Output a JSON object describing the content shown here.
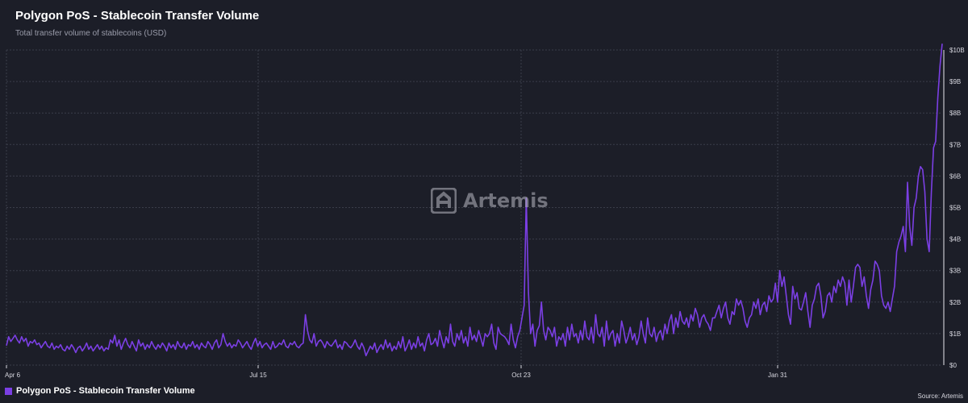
{
  "header": {
    "title": "Polygon PoS - Stablecoin Transfer Volume",
    "subtitle": "Total transfer volume of stablecoins (USD)"
  },
  "watermark": {
    "text": "Artemis",
    "icon": "artemis-logo-icon"
  },
  "legend": {
    "label": "Polygon PoS - Stablecoin Transfer Volume"
  },
  "footer": {
    "source": "Source: Artemis"
  },
  "colors": {
    "background": "#1c1e28",
    "series": "#7b3fe4",
    "grid": "#3a3d4a"
  },
  "chart_data": {
    "type": "line",
    "title": "Polygon PoS - Stablecoin Transfer Volume",
    "subtitle": "Total transfer volume of stablecoins (USD)",
    "xlabel": "",
    "ylabel": "",
    "x_ticks": [
      "Apr 6",
      "Jul 15",
      "Oct 23",
      "Jan 31"
    ],
    "y_ticks": [
      "$0",
      "$1B",
      "$2B",
      "$3B",
      "$4B",
      "$5B",
      "$6B",
      "$7B",
      "$8B",
      "$9B",
      "$10B"
    ],
    "ylim": [
      0,
      10000000000
    ],
    "y_axis_side": "right",
    "grid": true,
    "legend_position": "bottom-left",
    "x_start": "Apr 6",
    "series": [
      {
        "name": "Polygon PoS - Stablecoin Transfer Volume",
        "unit": "billion USD, daily",
        "values": [
          0.62,
          0.9,
          0.75,
          0.85,
          0.95,
          0.8,
          0.7,
          0.9,
          0.75,
          0.85,
          0.6,
          0.75,
          0.7,
          0.8,
          0.65,
          0.7,
          0.55,
          0.65,
          0.75,
          0.6,
          0.55,
          0.7,
          0.5,
          0.6,
          0.55,
          0.65,
          0.5,
          0.45,
          0.6,
          0.5,
          0.65,
          0.55,
          0.4,
          0.55,
          0.6,
          0.45,
          0.55,
          0.7,
          0.5,
          0.6,
          0.45,
          0.55,
          0.65,
          0.5,
          0.6,
          0.45,
          0.55,
          0.5,
          0.8,
          0.7,
          0.95,
          0.6,
          0.8,
          0.5,
          0.7,
          0.85,
          0.65,
          0.55,
          0.75,
          0.6,
          0.45,
          0.8,
          0.6,
          0.7,
          0.5,
          0.65,
          0.55,
          0.75,
          0.6,
          0.5,
          0.65,
          0.55,
          0.7,
          0.6,
          0.45,
          0.7,
          0.55,
          0.65,
          0.5,
          0.75,
          0.6,
          0.55,
          0.7,
          0.5,
          0.65,
          0.6,
          0.75,
          0.55,
          0.65,
          0.5,
          0.7,
          0.6,
          0.55,
          0.75,
          0.65,
          0.5,
          0.7,
          0.8,
          0.55,
          0.65,
          1.0,
          0.75,
          0.6,
          0.7,
          0.55,
          0.65,
          0.6,
          0.8,
          0.7,
          0.55,
          0.65,
          0.75,
          0.6,
          0.5,
          0.7,
          0.85,
          0.6,
          0.75,
          0.55,
          0.65,
          0.7,
          0.6,
          0.5,
          0.75,
          0.55,
          0.6,
          0.7,
          0.65,
          0.8,
          0.6,
          0.55,
          0.7,
          0.65,
          0.75,
          0.6,
          0.55,
          0.65,
          0.7,
          1.6,
          1.1,
          0.8,
          0.7,
          1.0,
          0.6,
          0.75,
          0.8,
          0.7,
          0.55,
          0.75,
          0.65,
          0.6,
          0.7,
          0.8,
          0.55,
          0.65,
          0.5,
          0.75,
          0.7,
          0.6,
          0.55,
          0.65,
          0.8,
          0.6,
          0.5,
          0.7,
          0.55,
          0.3,
          0.45,
          0.6,
          0.5,
          0.7,
          0.4,
          0.55,
          0.65,
          0.5,
          0.8,
          0.55,
          0.7,
          0.45,
          0.6,
          0.5,
          0.75,
          0.55,
          0.9,
          0.45,
          0.6,
          0.8,
          0.5,
          0.7,
          0.55,
          0.9,
          0.6,
          0.7,
          0.45,
          0.8,
          1.0,
          0.65,
          0.7,
          0.85,
          0.6,
          1.1,
          0.8,
          0.55,
          0.9,
          0.7,
          1.3,
          0.75,
          0.6,
          1.0,
          0.8,
          1.1,
          0.7,
          0.9,
          0.6,
          1.2,
          0.8,
          0.95,
          0.75,
          1.1,
          0.85,
          0.6,
          1.0,
          0.9,
          1.0,
          1.3,
          0.7,
          0.5,
          1.2,
          1.0,
          0.95,
          0.9,
          0.8,
          0.65,
          1.3,
          0.8,
          0.55,
          0.9,
          1.1,
          1.5,
          1.9,
          5.3,
          2.3,
          1.0,
          1.3,
          0.6,
          1.1,
          1.25,
          2.0,
          1.1,
          0.8,
          1.2,
          1.1,
          0.9,
          1.2,
          0.6,
          0.9,
          0.8,
          1.0,
          0.6,
          1.2,
          0.8,
          1.3,
          0.9,
          1.0,
          0.7,
          1.1,
          0.8,
          1.4,
          0.9,
          0.8,
          1.2,
          0.7,
          1.6,
          1.0,
          0.9,
          1.2,
          0.6,
          1.4,
          0.8,
          1.0,
          1.1,
          0.6,
          1.0,
          0.7,
          1.4,
          1.1,
          0.7,
          0.9,
          1.2,
          0.8,
          1.0,
          0.65,
          0.9,
          1.4,
          1.0,
          0.7,
          1.5,
          1.0,
          0.9,
          1.2,
          0.75,
          1.0,
          1.1,
          0.8,
          1.3,
          1.0,
          1.4,
          1.6,
          1.0,
          1.5,
          1.2,
          1.7,
          1.4,
          1.3,
          1.5,
          1.2,
          1.6,
          1.4,
          1.8,
          1.6,
          1.2,
          1.5,
          1.6,
          1.4,
          1.3,
          1.1,
          1.5,
          1.5,
          1.7,
          1.9,
          1.5,
          1.8,
          2.0,
          1.5,
          1.3,
          1.7,
          1.6,
          2.1,
          1.9,
          2.05,
          1.8,
          1.4,
          1.2,
          1.5,
          1.6,
          2.0,
          1.8,
          2.1,
          1.6,
          1.9,
          2.0,
          1.7,
          2.2,
          2.0,
          2.1,
          2.6,
          2.0,
          3.0,
          2.5,
          2.8,
          2.2,
          1.6,
          1.3,
          2.5,
          2.1,
          2.3,
          1.8,
          1.75,
          2.0,
          2.3,
          1.7,
          1.2,
          1.9,
          2.1,
          2.5,
          2.6,
          2.2,
          1.5,
          1.7,
          2.2,
          2.3,
          2.0,
          2.5,
          2.3,
          2.7,
          2.5,
          2.8,
          2.6,
          1.9,
          2.7,
          2.0,
          2.5,
          3.1,
          3.2,
          3.1,
          2.5,
          2.8,
          2.2,
          1.8,
          2.4,
          2.7,
          3.3,
          3.2,
          3.0,
          2.2,
          1.9,
          1.8,
          2.0,
          1.7,
          2.1,
          2.5,
          3.6,
          3.9,
          4.1,
          4.4,
          3.6,
          5.8,
          4.4,
          3.8,
          5.0,
          5.3,
          6.0,
          6.3,
          6.2,
          5.5,
          4.0,
          3.6,
          5.5,
          6.9,
          7.1,
          8.5,
          9.5,
          10.2
        ]
      }
    ]
  }
}
